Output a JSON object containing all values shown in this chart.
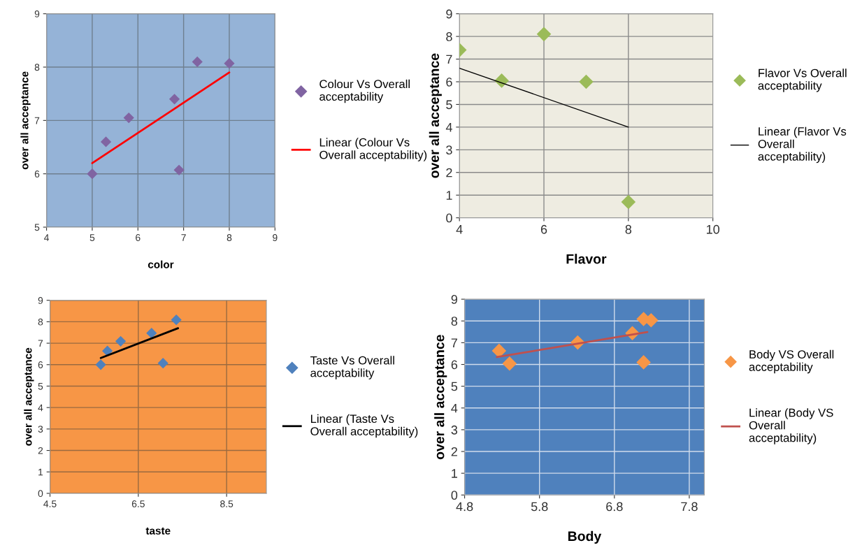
{
  "chart_data": [
    {
      "type": "scatter",
      "xlabel": "color",
      "ylabel": "over all acceptance",
      "xlim": [
        4,
        9
      ],
      "ylim": [
        5,
        9
      ],
      "xticks": [
        4,
        5,
        6,
        7,
        8,
        9
      ],
      "yticks": [
        5,
        6,
        7,
        8,
        9
      ],
      "grid": true,
      "legend": "right",
      "series": [
        {
          "name": "Colour Vs Overall\nacceptability",
          "marker": "diamond",
          "color": "#8064a2",
          "x": [
            5,
            5.3,
            5.8,
            6.8,
            6.9,
            7.3,
            8
          ],
          "values": [
            6.0,
            6.6,
            7.05,
            7.4,
            6.07,
            8.1,
            8.07
          ]
        },
        {
          "type": "line",
          "name": "Linear (Colour Vs\nOverall acceptability)",
          "color": "#ff0000",
          "x": [
            5,
            8
          ],
          "values": [
            6.2,
            7.9
          ]
        }
      ]
    },
    {
      "type": "scatter",
      "xlabel": "Flavor",
      "ylabel": "over all acceptance",
      "xlim": [
        4,
        10
      ],
      "ylim": [
        0,
        9
      ],
      "xticks": [
        4,
        6,
        8,
        10
      ],
      "yticks": [
        0,
        1,
        2,
        3,
        4,
        5,
        6,
        7,
        8,
        9
      ],
      "grid": true,
      "legend": "right",
      "series": [
        {
          "name": "Flavor Vs Overall\nacceptability",
          "marker": "diamond",
          "color": "#9bbb59",
          "x": [
            4,
            5,
            6,
            7,
            8
          ],
          "values": [
            7.4,
            6.05,
            8.1,
            6.0,
            0.7
          ]
        },
        {
          "type": "line",
          "name": "Linear (Flavor Vs\nOverall\nacceptability)",
          "color": "#000000",
          "x": [
            4,
            8
          ],
          "values": [
            6.6,
            4.0
          ]
        }
      ]
    },
    {
      "type": "scatter",
      "xlabel": "taste",
      "ylabel": "over all acceptance",
      "xlim": [
        4.5,
        9.4
      ],
      "ylim": [
        0,
        9
      ],
      "xticks": [
        4.5,
        6.5,
        8.5
      ],
      "yticks": [
        0,
        1,
        2,
        3,
        4,
        5,
        6,
        7,
        8,
        9
      ],
      "grid": true,
      "legend": "right",
      "series": [
        {
          "name": "Taste Vs Overall\nacceptability",
          "marker": "diamond",
          "color": "#4f81bd",
          "x": [
            5.65,
            5.8,
            6.1,
            6.8,
            7.06,
            7.36
          ],
          "values": [
            6.0,
            6.64,
            7.09,
            7.47,
            6.07,
            8.09
          ]
        },
        {
          "type": "line",
          "name": "Linear (Taste Vs\nOverall acceptability)",
          "color": "#000000",
          "x": [
            5.65,
            7.4
          ],
          "values": [
            6.31,
            7.7
          ]
        }
      ]
    },
    {
      "type": "scatter",
      "xlabel": "Body",
      "ylabel": "over all acceptance",
      "xlim": [
        4.8,
        8.0
      ],
      "ylim": [
        0,
        9
      ],
      "xticks": [
        4.8,
        5.8,
        6.8,
        7.8
      ],
      "yticks": [
        0,
        1,
        2,
        3,
        4,
        5,
        6,
        7,
        8,
        9
      ],
      "grid": true,
      "legend": "right",
      "series": [
        {
          "name": "Body VS Overall\nacceptability",
          "marker": "diamond",
          "color": "#f79646",
          "x": [
            5.26,
            5.4,
            6.31,
            7.04,
            7.19,
            7.29,
            7.19
          ],
          "values": [
            6.63,
            6.04,
            7.01,
            7.44,
            8.09,
            8.03,
            6.1
          ]
        },
        {
          "type": "line",
          "name": "Linear (Body VS\nOverall\nacceptability)",
          "color": "#c0504d",
          "x": [
            5.23,
            7.24
          ],
          "values": [
            6.34,
            7.49
          ]
        }
      ]
    }
  ]
}
